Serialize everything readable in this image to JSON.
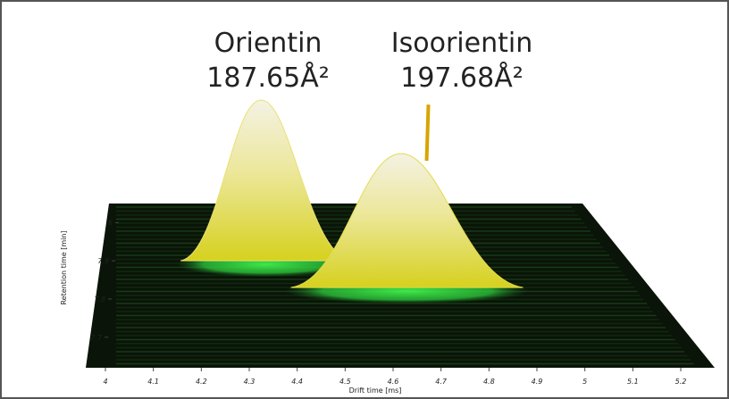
{
  "chart_data": {
    "type": "surface3d",
    "x_label": "Drift time [ms]",
    "y_label": "Retention time [min]",
    "xlim": [
      4,
      5.2
    ],
    "xticks": [
      4,
      4.1,
      4.2,
      4.3,
      4.4,
      4.5,
      4.6,
      4.7,
      4.8,
      4.9,
      5,
      5.1,
      5.2
    ],
    "ylim": [
      7.62,
      8.05
    ],
    "yticks": [
      7.7,
      7.8,
      7.9,
      8
    ],
    "peaks": [
      {
        "name": "Orientin",
        "ccs": 187.65,
        "ccs_label": "187.65Å²",
        "drift_time": 4.36,
        "retention_time": 7.9,
        "color": "#e8e070"
      },
      {
        "name": "Isoorientin",
        "ccs": 197.68,
        "ccs_label": "197.68Å²",
        "drift_time": 4.68,
        "retention_time": 7.83,
        "color": "#e2dc4a"
      }
    ]
  }
}
